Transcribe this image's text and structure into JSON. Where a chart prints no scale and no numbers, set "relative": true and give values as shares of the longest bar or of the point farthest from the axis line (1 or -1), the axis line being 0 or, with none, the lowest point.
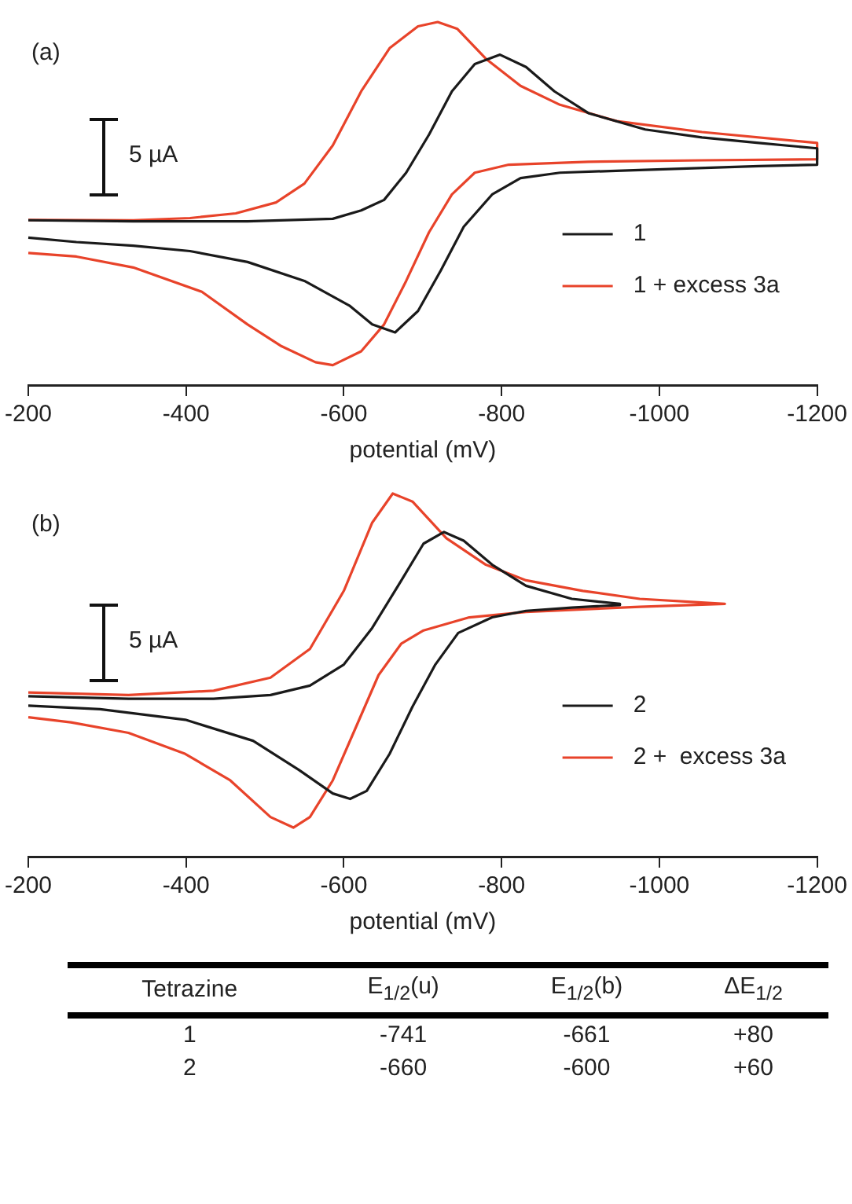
{
  "chart_data": [
    {
      "type": "line",
      "title": "(a)",
      "xlabel": "potential (mV)",
      "relative": true,
      "xlim": [
        -200,
        -1200
      ],
      "xticks": [
        -200,
        -400,
        -600,
        -800,
        -1000,
        -1200
      ],
      "grid": false,
      "legend": "bottom right",
      "marker": "none",
      "line_style": "solid",
      "annotations": [
        "5 µA"
      ],
      "series": [
        {
          "name": "1",
          "color": "#1a1a1a",
          "x": [
            -200,
            -333,
            -478,
            -586,
            -622,
            -651,
            -679,
            -708,
            -737,
            -766,
            -798,
            -831,
            -867,
            -910,
            -982,
            -1054,
            -1126,
            -1200,
            -1200,
            -1126,
            -982,
            -874,
            -824,
            -788,
            -752,
            -723,
            -694,
            -665,
            -636,
            -607,
            -550,
            -478,
            -405,
            -333,
            -261,
            -200
          ],
          "values": [
            0.454,
            0.451,
            0.451,
            0.458,
            0.481,
            0.51,
            0.585,
            0.69,
            0.809,
            0.884,
            0.91,
            0.876,
            0.809,
            0.749,
            0.704,
            0.682,
            0.667,
            0.652,
            0.607,
            0.603,
            0.593,
            0.585,
            0.57,
            0.525,
            0.436,
            0.316,
            0.204,
            0.145,
            0.167,
            0.219,
            0.287,
            0.339,
            0.369,
            0.384,
            0.394,
            0.406
          ]
        },
        {
          "name": "1 + excess 3a",
          "color": "#e8432a",
          "x": [
            -200,
            -333,
            -405,
            -463,
            -514,
            -550,
            -586,
            -622,
            -658,
            -694,
            -719,
            -744,
            -780,
            -824,
            -874,
            -946,
            -1054,
            -1200,
            -1200,
            -1054,
            -910,
            -809,
            -766,
            -737,
            -708,
            -679,
            -651,
            -622,
            -586,
            -564,
            -521,
            -478,
            -420,
            -333,
            -261,
            -200
          ],
          "values": [
            0.455,
            0.454,
            0.46,
            0.473,
            0.503,
            0.555,
            0.66,
            0.809,
            0.928,
            0.988,
            1,
            0.981,
            0.899,
            0.824,
            0.772,
            0.727,
            0.697,
            0.667,
            0.622,
            0.619,
            0.615,
            0.607,
            0.585,
            0.525,
            0.421,
            0.287,
            0.167,
            0.093,
            0.055,
            0.063,
            0.107,
            0.167,
            0.257,
            0.324,
            0.354,
            0.364
          ]
        }
      ]
    },
    {
      "type": "line",
      "title": "(b)",
      "xlabel": "potential (mV)",
      "relative": true,
      "xlim": [
        -200,
        -1200
      ],
      "xticks": [
        -200,
        -400,
        -600,
        -800,
        -1000,
        -1200
      ],
      "grid": false,
      "legend": "bottom right",
      "marker": "none",
      "line_style": "solid",
      "annotations": [
        "5 µA"
      ],
      "series": [
        {
          "name": "2",
          "color": "#1a1a1a",
          "x": [
            -200,
            -327,
            -435,
            -507,
            -557,
            -600,
            -636,
            -673,
            -701,
            -727,
            -752,
            -788,
            -831,
            -889,
            -950,
            -950,
            -889,
            -831,
            -788,
            -745,
            -716,
            -687,
            -658,
            -629,
            -608,
            -586,
            -543,
            -485,
            -399,
            -291,
            -200
          ],
          "values": [
            0.442,
            0.435,
            0.435,
            0.445,
            0.471,
            0.529,
            0.63,
            0.761,
            0.862,
            0.894,
            0.87,
            0.804,
            0.746,
            0.71,
            0.696,
            0.693,
            0.686,
            0.677,
            0.659,
            0.616,
            0.529,
            0.413,
            0.283,
            0.181,
            0.159,
            0.174,
            0.239,
            0.319,
            0.377,
            0.406,
            0.416
          ]
        },
        {
          "name": "2 +  excess 3a",
          "color": "#e8432a",
          "x": [
            -200,
            -327,
            -435,
            -507,
            -557,
            -600,
            -636,
            -662,
            -687,
            -730,
            -780,
            -831,
            -903,
            -975,
            -1083,
            -975,
            -903,
            -831,
            -759,
            -701,
            -673,
            -644,
            -615,
            -586,
            -557,
            -536,
            -507,
            -456,
            -399,
            -327,
            -254,
            -200
          ],
          "values": [
            0.452,
            0.445,
            0.457,
            0.493,
            0.572,
            0.732,
            0.92,
            1,
            0.978,
            0.877,
            0.804,
            0.761,
            0.732,
            0.71,
            0.696,
            0.688,
            0.681,
            0.674,
            0.659,
            0.623,
            0.587,
            0.5,
            0.355,
            0.21,
            0.109,
            0.08,
            0.109,
            0.21,
            0.283,
            0.341,
            0.37,
            0.384
          ]
        }
      ]
    },
    {
      "type": "other",
      "categories": [
        "Tetrazine",
        "E$_{1/2}$(u)",
        "E$_{1/2}$(b)",
        "ΔE$_{1/2}$"
      ],
      "cell_labels": [
        [
          "1",
          "-741",
          "-661",
          "+80"
        ],
        [
          "2",
          "-660",
          "-600",
          "+60"
        ]
      ]
    }
  ]
}
